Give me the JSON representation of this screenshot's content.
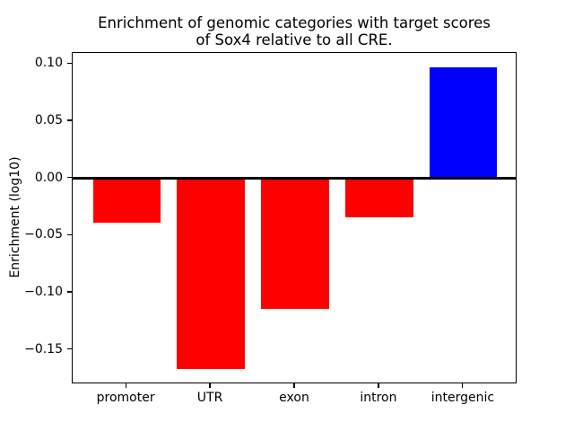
{
  "title": {
    "line1": "Enrichment of genomic categories with target scores",
    "line2": "of Sox4 relative to all CRE."
  },
  "chart_data": {
    "type": "bar",
    "title": "Enrichment of genomic categories with target scores\nof Sox4 relative to all CRE.",
    "categories": [
      "promoter",
      "UTR",
      "exon",
      "intron",
      "intergenic"
    ],
    "values": [
      -0.039,
      -0.167,
      -0.114,
      -0.034,
      0.097
    ],
    "bar_colors": [
      "#ff0000",
      "#ff0000",
      "#ff0000",
      "#ff0000",
      "#0000ff"
    ],
    "negative_color": "#ff0000",
    "positive_color": "#0000ff",
    "xlabel": "",
    "ylabel": "Enrichment (log10)",
    "ylim": [
      -0.18,
      0.11
    ],
    "xlim": [
      -0.64,
      4.64
    ],
    "bar_width": 0.8,
    "yticks": [
      0.1,
      0.05,
      0.0,
      -0.05,
      -0.1,
      -0.15
    ],
    "ytick_labels": [
      "0.10",
      "0.05",
      "0.00",
      "−0.05",
      "−0.10",
      "−0.15"
    ],
    "grid": false,
    "legend": null,
    "zero_line": true,
    "axis_color": "#000000",
    "background_color": "#ffffff"
  }
}
